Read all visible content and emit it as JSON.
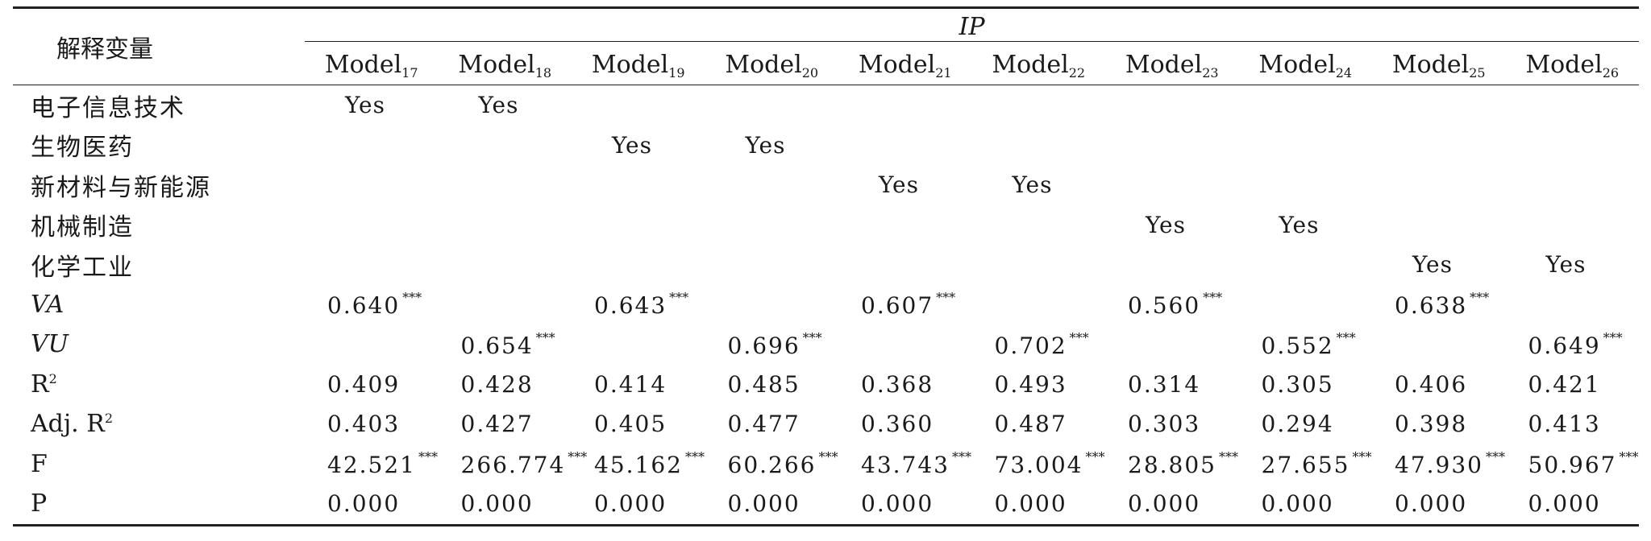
{
  "table": {
    "var_header": "解释变量",
    "group_header": "IP",
    "models": [
      {
        "name": "Model",
        "sub": "17"
      },
      {
        "name": "Model",
        "sub": "18"
      },
      {
        "name": "Model",
        "sub": "19"
      },
      {
        "name": "Model",
        "sub": "20"
      },
      {
        "name": "Model",
        "sub": "21"
      },
      {
        "name": "Model",
        "sub": "22"
      },
      {
        "name": "Model",
        "sub": "23"
      },
      {
        "name": "Model",
        "sub": "24"
      },
      {
        "name": "Model",
        "sub": "25"
      },
      {
        "name": "Model",
        "sub": "26"
      }
    ],
    "rows": [
      {
        "label": "电子信息技术",
        "style": "cn",
        "cells": [
          "Yes",
          "Yes",
          "",
          "",
          "",
          "",
          "",
          "",
          "",
          ""
        ],
        "stars": [
          "",
          "",
          "",
          "",
          "",
          "",
          "",
          "",
          "",
          ""
        ]
      },
      {
        "label": "生物医药",
        "style": "cn",
        "cells": [
          "",
          "",
          "Yes",
          "Yes",
          "",
          "",
          "",
          "",
          "",
          ""
        ],
        "stars": [
          "",
          "",
          "",
          "",
          "",
          "",
          "",
          "",
          "",
          ""
        ]
      },
      {
        "label": "新材料与新能源",
        "style": "cn",
        "cells": [
          "",
          "",
          "",
          "",
          "Yes",
          "Yes",
          "",
          "",
          "",
          ""
        ],
        "stars": [
          "",
          "",
          "",
          "",
          "",
          "",
          "",
          "",
          "",
          ""
        ]
      },
      {
        "label": "机械制造",
        "style": "cn",
        "cells": [
          "",
          "",
          "",
          "",
          "",
          "",
          "Yes",
          "Yes",
          "",
          ""
        ],
        "stars": [
          "",
          "",
          "",
          "",
          "",
          "",
          "",
          "",
          "",
          ""
        ]
      },
      {
        "label": "化学工业",
        "style": "cn",
        "cells": [
          "",
          "",
          "",
          "",
          "",
          "",
          "",
          "",
          "Yes",
          "Yes"
        ],
        "stars": [
          "",
          "",
          "",
          "",
          "",
          "",
          "",
          "",
          "",
          ""
        ]
      },
      {
        "label": "VA",
        "style": "it",
        "cells": [
          "0.640",
          "",
          "0.643",
          "",
          "0.607",
          "",
          "0.560",
          "",
          "0.638",
          ""
        ],
        "stars": [
          "***",
          "",
          "***",
          "",
          "***",
          "",
          "***",
          "",
          "***",
          ""
        ]
      },
      {
        "label": "VU",
        "style": "it",
        "cells": [
          "",
          "0.654",
          "",
          "0.696",
          "",
          "0.702",
          "",
          "0.552",
          "",
          "0.649"
        ],
        "stars": [
          "",
          "***",
          "",
          "***",
          "",
          "***",
          "",
          "***",
          "",
          "***"
        ]
      },
      {
        "label": "R",
        "label_sup": "2",
        "style": "latin",
        "cells": [
          "0.409",
          "0.428",
          "0.414",
          "0.485",
          "0.368",
          "0.493",
          "0.314",
          "0.305",
          "0.406",
          "0.421"
        ],
        "stars": [
          "",
          "",
          "",
          "",
          "",
          "",
          "",
          "",
          "",
          ""
        ]
      },
      {
        "label": "Adj. R",
        "label_sup": "2",
        "style": "latin",
        "cells": [
          "0.403",
          "0.427",
          "0.405",
          "0.477",
          "0.360",
          "0.487",
          "0.303",
          "0.294",
          "0.398",
          "0.413"
        ],
        "stars": [
          "",
          "",
          "",
          "",
          "",
          "",
          "",
          "",
          "",
          ""
        ]
      },
      {
        "label": "F",
        "style": "latin",
        "cells": [
          "42.521",
          "266.774",
          "45.162",
          "60.266",
          "43.743",
          "73.004",
          "28.805",
          "27.655",
          "47.930",
          "50.967"
        ],
        "stars": [
          "***",
          "***",
          "***",
          "***",
          "***",
          "***",
          "***",
          "***",
          "***",
          "***"
        ]
      },
      {
        "label": "P",
        "style": "latin",
        "cells": [
          "0.000",
          "0.000",
          "0.000",
          "0.000",
          "0.000",
          "0.000",
          "0.000",
          "0.000",
          "0.000",
          "0.000"
        ],
        "stars": [
          "",
          "",
          "",
          "",
          "",
          "",
          "",
          "",
          "",
          ""
        ]
      }
    ]
  }
}
